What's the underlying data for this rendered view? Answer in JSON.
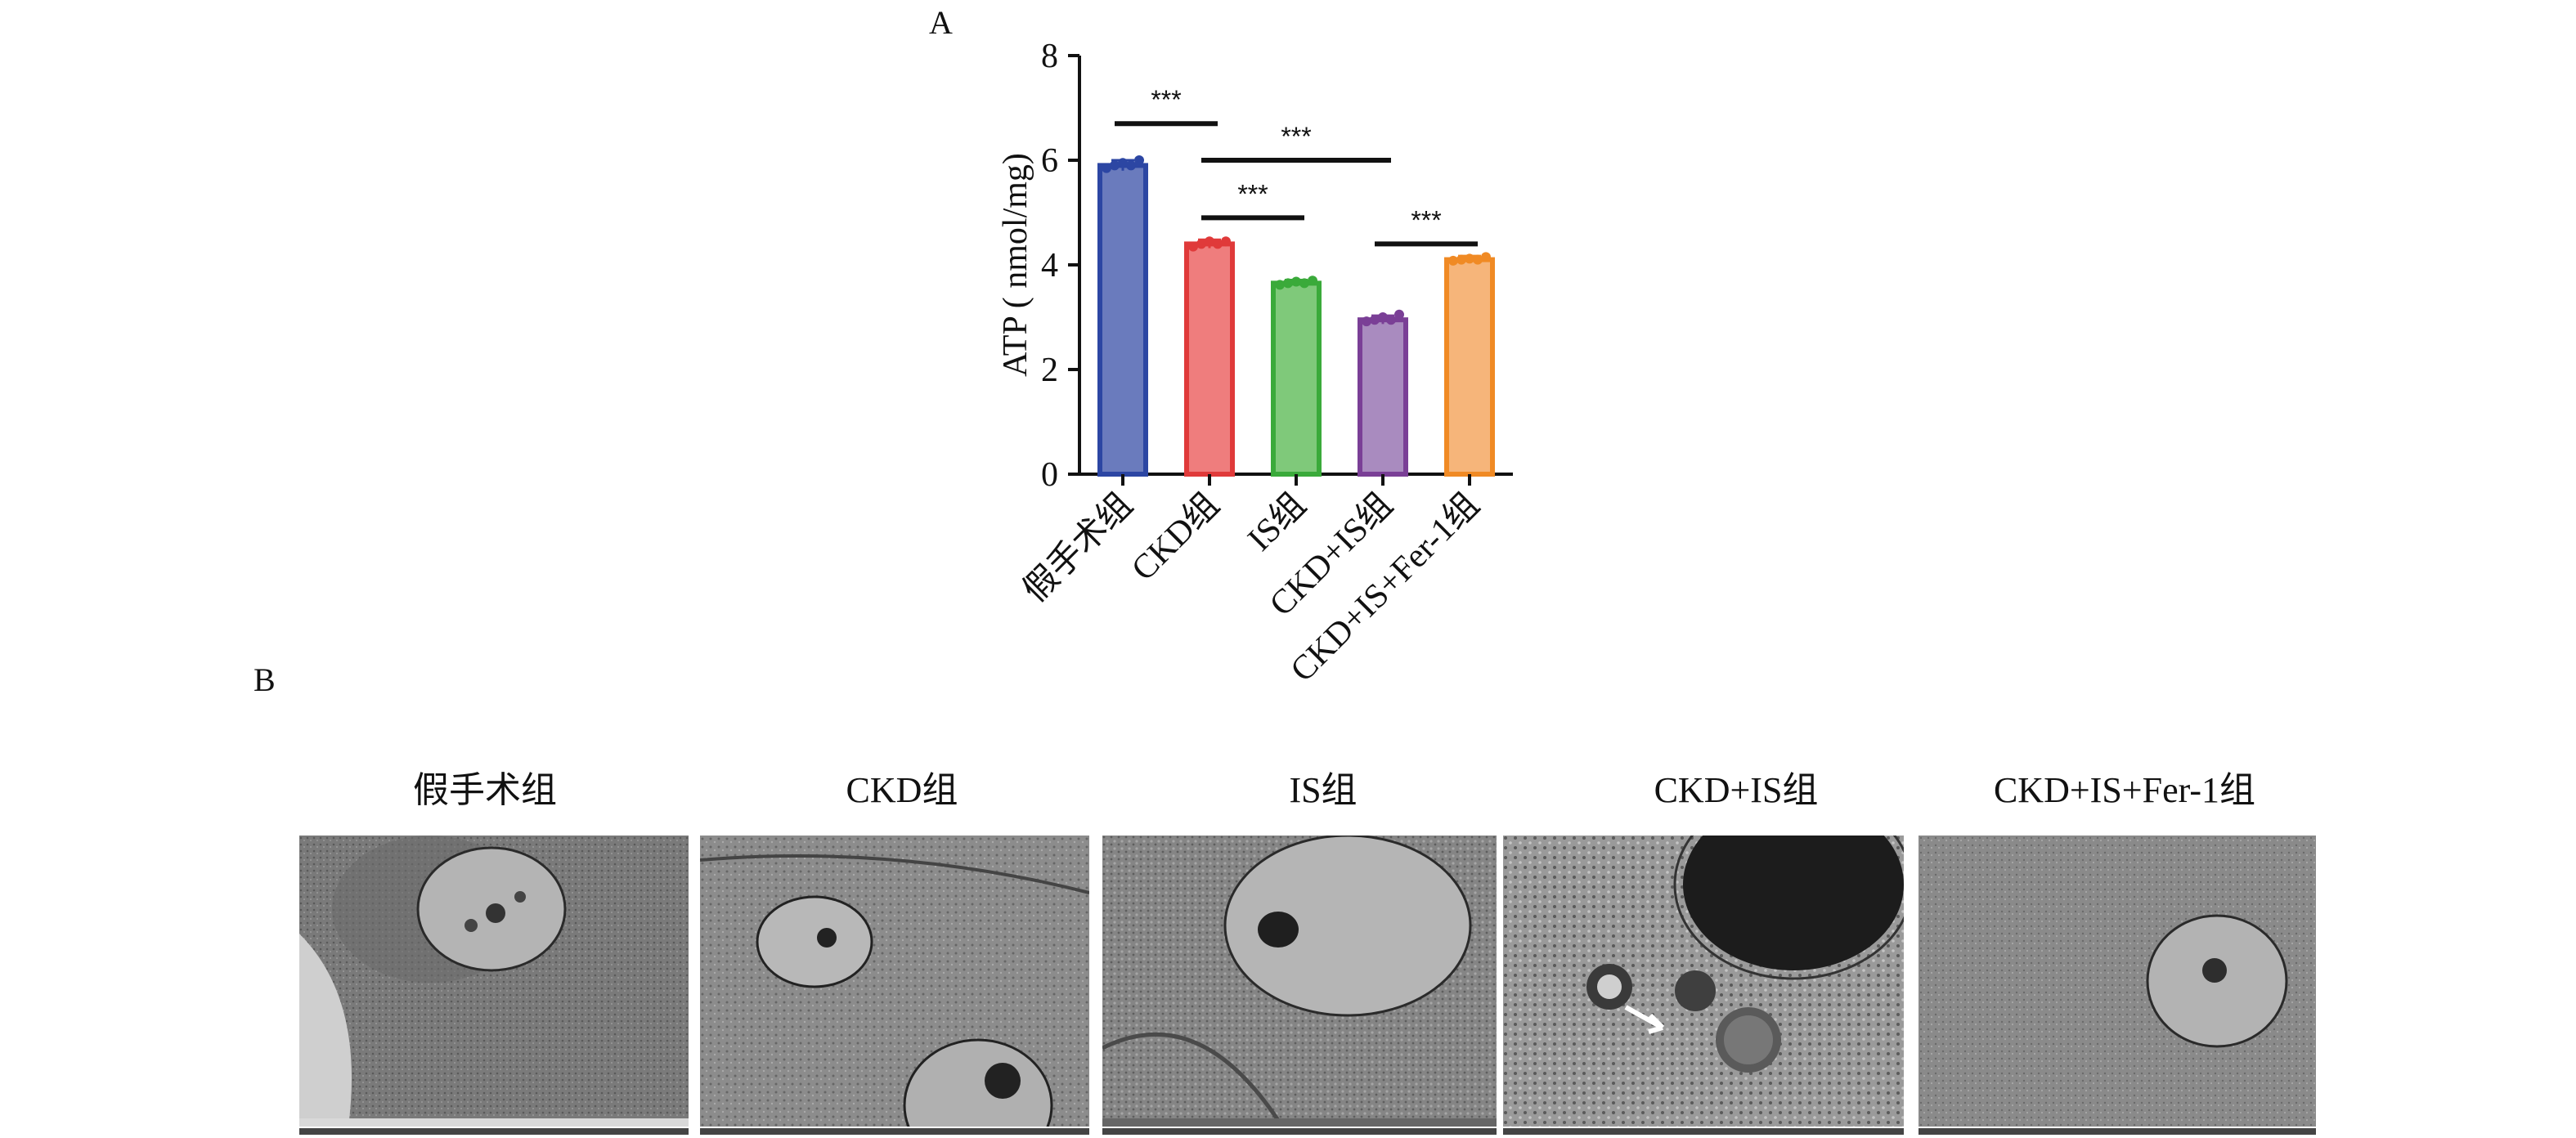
{
  "panel_labels": {
    "a": "A",
    "b": "B"
  },
  "chart_data": {
    "type": "bar",
    "title": "",
    "xlabel": "",
    "ylabel": "ATP ( nmol/mg)",
    "ylim": [
      0,
      8
    ],
    "yticks": [
      0,
      2,
      4,
      6,
      8
    ],
    "grid": false,
    "categories": [
      "假手术组",
      "CKD组",
      "IS组",
      "CKD+IS组",
      "CKD+IS+Fer-1组"
    ],
    "values": [
      5.9,
      4.4,
      3.65,
      2.95,
      4.1
    ],
    "errors": [
      0.1,
      0.08,
      0.06,
      0.08,
      0.07
    ],
    "points": [
      [
        5.85,
        5.9,
        5.95,
        5.9,
        6.0
      ],
      [
        4.35,
        4.4,
        4.45,
        4.4,
        4.45
      ],
      [
        3.62,
        3.65,
        3.68,
        3.65,
        3.7
      ],
      [
        2.92,
        2.95,
        3.0,
        2.95,
        3.05
      ],
      [
        4.08,
        4.1,
        4.12,
        4.1,
        4.15
      ]
    ],
    "colors": {
      "fill": [
        "#6a7bbd",
        "#ef7d7d",
        "#7fc97a",
        "#a98bbf",
        "#f6b57a"
      ],
      "stroke": [
        "#2c46a3",
        "#e03a3a",
        "#3aaa3a",
        "#7a3f96",
        "#f08a24"
      ]
    },
    "significance": [
      {
        "from": 0,
        "to": 1,
        "y": 6.7,
        "label": "***"
      },
      {
        "from": 1,
        "to": 3,
        "y": 6.0,
        "label": "***"
      },
      {
        "from": 1,
        "to": 2,
        "y": 4.9,
        "label": "***"
      },
      {
        "from": 3,
        "to": 4,
        "y": 4.4,
        "label": "***"
      }
    ]
  },
  "panel_b": {
    "titles": [
      "假手术组",
      "CKD组",
      "IS组",
      "CKD+IS组",
      "CKD+IS+Fer-1组"
    ]
  }
}
